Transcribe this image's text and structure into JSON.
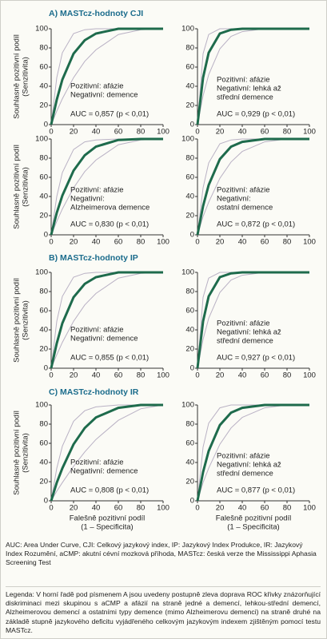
{
  "sections": [
    "A) MASTcz-hodnoty CJI",
    "B) MASTcz-hodnoty IP",
    "C) MASTcz-hodnoty IR"
  ],
  "chart_data": [
    {
      "type": "line",
      "ylabel": [
        "Souhlasně pozitivní podíl",
        "(Senzitivita)"
      ],
      "annotation": [
        "Pozitivní: afázie",
        "Negativní: demence",
        "AUC = 0,857 (p < 0,01)"
      ],
      "x": [
        0,
        5,
        10,
        20,
        30,
        40,
        60,
        80,
        100
      ],
      "xlim": [
        0,
        100
      ],
      "ylim": [
        0,
        100
      ],
      "xticks": [
        0,
        20,
        40,
        60,
        80,
        100
      ],
      "yticks": [
        0,
        20,
        40,
        60,
        80,
        100
      ],
      "series": [
        {
          "color": "#b9b1c4",
          "line_width": 1,
          "values": [
            0,
            14,
            27,
            49,
            66,
            78,
            94,
            99,
            100
          ]
        },
        {
          "color": "#b9b1c4",
          "line_width": 1,
          "values": [
            0,
            49,
            75,
            95,
            99,
            100,
            100,
            100,
            100
          ]
        },
        {
          "color": "#1e6b4c",
          "line_width": 3,
          "values": [
            0,
            26,
            47,
            74,
            88,
            95,
            100,
            100,
            100
          ]
        }
      ]
    },
    {
      "type": "line",
      "annotation": [
        "Pozitivní: afázie",
        "Negativní: lehká až",
        "střední demence",
        "AUC = 0,929 (p < 0,01)"
      ],
      "x": [
        0,
        5,
        10,
        20,
        30,
        40,
        60,
        80,
        100
      ],
      "xlim": [
        0,
        100
      ],
      "ylim": [
        0,
        100
      ],
      "xticks": [
        0,
        20,
        40,
        60,
        80,
        100
      ],
      "yticks": [
        0,
        20,
        40,
        60,
        80,
        100
      ],
      "series": [
        {
          "color": "#b9b1c4",
          "line_width": 1,
          "values": [
            0,
            30,
            52,
            79,
            92,
            97,
            100,
            100,
            100
          ]
        },
        {
          "color": "#b9b1c4",
          "line_width": 1,
          "values": [
            0,
            74,
            94,
            100,
            100,
            100,
            100,
            100,
            100
          ]
        },
        {
          "color": "#1e6b4c",
          "line_width": 3,
          "values": [
            0,
            49,
            75,
            95,
            99,
            100,
            100,
            100,
            100
          ]
        }
      ]
    },
    {
      "type": "line",
      "ylabel": [
        "Souhlasně pozitivní podíl",
        "(Senzitivita)"
      ],
      "annotation": [
        "Pozitivní: afázie",
        "Negativní:",
        "Alzheimerova demence",
        "AUC = 0,830 (p < 0,01)"
      ],
      "x": [
        0,
        5,
        10,
        20,
        30,
        40,
        60,
        80,
        100
      ],
      "xlim": [
        0,
        100
      ],
      "ylim": [
        0,
        100
      ],
      "xticks": [
        0,
        20,
        40,
        60,
        80,
        100
      ],
      "yticks": [
        0,
        20,
        40,
        60,
        80,
        100
      ],
      "series": [
        {
          "color": "#b9b1c4",
          "line_width": 1,
          "values": [
            0,
            14,
            27,
            49,
            66,
            78,
            94,
            99,
            100
          ]
        },
        {
          "color": "#b9b1c4",
          "line_width": 1,
          "values": [
            0,
            40,
            65,
            89,
            97,
            99,
            100,
            100,
            100
          ]
        },
        {
          "color": "#1e6b4c",
          "line_width": 3,
          "values": [
            0,
            23,
            41,
            67,
            83,
            92,
            99,
            100,
            100
          ]
        }
      ]
    },
    {
      "type": "line",
      "annotation": [
        "Pozitivní: afázie",
        "Negativní:",
        "ostatní demence",
        "AUC = 0,872 (p < 0,01)"
      ],
      "x": [
        0,
        5,
        10,
        20,
        30,
        40,
        60,
        80,
        100
      ],
      "xlim": [
        0,
        100
      ],
      "ylim": [
        0,
        100
      ],
      "xticks": [
        0,
        20,
        40,
        60,
        80,
        100
      ],
      "yticks": [
        0,
        20,
        40,
        60,
        80,
        100
      ],
      "series": [
        {
          "color": "#b9b1c4",
          "line_width": 1,
          "values": [
            0,
            19,
            34,
            59,
            76,
            87,
            97,
            100,
            100
          ]
        },
        {
          "color": "#b9b1c4",
          "line_width": 1,
          "values": [
            0,
            49,
            75,
            95,
            99,
            100,
            100,
            100,
            100
          ]
        },
        {
          "color": "#1e6b4c",
          "line_width": 3,
          "values": [
            0,
            30,
            52,
            79,
            92,
            97,
            100,
            100,
            100
          ]
        }
      ]
    },
    {
      "type": "line",
      "ylabel": [
        "Souhlasně pozitivní podíl",
        "(Senzitivita)"
      ],
      "annotation": [
        "Pozitivní: afázie",
        "Negativní: demence",
        "AUC = 0,855 (p < 0,01)"
      ],
      "x": [
        0,
        5,
        10,
        20,
        30,
        40,
        60,
        80,
        100
      ],
      "xlim": [
        0,
        100
      ],
      "ylim": [
        0,
        100
      ],
      "xticks": [
        0,
        20,
        40,
        60,
        80,
        100
      ],
      "yticks": [
        0,
        20,
        40,
        60,
        80,
        100
      ],
      "series": [
        {
          "color": "#b9b1c4",
          "line_width": 1,
          "values": [
            0,
            14,
            27,
            49,
            66,
            78,
            94,
            99,
            100
          ]
        },
        {
          "color": "#b9b1c4",
          "line_width": 1,
          "values": [
            0,
            49,
            75,
            95,
            99,
            100,
            100,
            100,
            100
          ]
        },
        {
          "color": "#1e6b4c",
          "line_width": 3,
          "values": [
            0,
            26,
            47,
            74,
            88,
            95,
            100,
            100,
            100
          ]
        }
      ]
    },
    {
      "type": "line",
      "annotation": [
        "Pozitivní: afázie",
        "Negativní: lehká až",
        "střední demence",
        "AUC = 0,927 (p < 0,01)"
      ],
      "x": [
        0,
        5,
        10,
        20,
        30,
        40,
        60,
        80,
        100
      ],
      "xlim": [
        0,
        100
      ],
      "ylim": [
        0,
        100
      ],
      "xticks": [
        0,
        20,
        40,
        60,
        80,
        100
      ],
      "yticks": [
        0,
        20,
        40,
        60,
        80,
        100
      ],
      "series": [
        {
          "color": "#b9b1c4",
          "line_width": 1,
          "values": [
            0,
            30,
            52,
            79,
            92,
            97,
            100,
            100,
            100
          ]
        },
        {
          "color": "#b9b1c4",
          "line_width": 1,
          "values": [
            0,
            74,
            94,
            100,
            100,
            100,
            100,
            100,
            100
          ]
        },
        {
          "color": "#1e6b4c",
          "line_width": 3,
          "values": [
            0,
            49,
            75,
            95,
            99,
            100,
            100,
            100,
            100
          ]
        }
      ]
    },
    {
      "type": "line",
      "ylabel": [
        "Souhlasně pozitivní podíl",
        "(Senzitivita)"
      ],
      "xlabel": [
        "Falešně pozitivní podíl",
        "(1 – Specificita)"
      ],
      "annotation": [
        "Pozitivní: afázie",
        "Negativní: demence",
        "AUC = 0,808 (p < 0,01)"
      ],
      "x": [
        0,
        5,
        10,
        20,
        30,
        40,
        60,
        80,
        100
      ],
      "xlim": [
        0,
        100
      ],
      "ylim": [
        0,
        100
      ],
      "xticks": [
        0,
        20,
        40,
        60,
        80,
        100
      ],
      "yticks": [
        0,
        20,
        40,
        60,
        80,
        100
      ],
      "series": [
        {
          "color": "#b9b1c4",
          "line_width": 1,
          "values": [
            0,
            10,
            19,
            36,
            51,
            64,
            84,
            96,
            100
          ]
        },
        {
          "color": "#b9b1c4",
          "line_width": 1,
          "values": [
            0,
            34,
            57,
            83,
            94,
            98,
            100,
            100,
            100
          ]
        },
        {
          "color": "#1e6b4c",
          "line_width": 3,
          "values": [
            0,
            19,
            34,
            59,
            76,
            87,
            97,
            100,
            100
          ]
        }
      ]
    },
    {
      "type": "line",
      "xlabel": [
        "Falešně pozitivní podíl",
        "(1 – Specificita)"
      ],
      "annotation": [
        "Pozitivní: afázie",
        "Negativní: lehká až",
        "střední demence",
        "AUC = 0,877 (p < 0,01)"
      ],
      "x": [
        0,
        5,
        10,
        20,
        30,
        40,
        60,
        80,
        100
      ],
      "xlim": [
        0,
        100
      ],
      "ylim": [
        0,
        100
      ],
      "xticks": [
        0,
        20,
        40,
        60,
        80,
        100
      ],
      "yticks": [
        0,
        20,
        40,
        60,
        80,
        100
      ],
      "series": [
        {
          "color": "#b9b1c4",
          "line_width": 1,
          "values": [
            0,
            19,
            34,
            59,
            76,
            87,
            97,
            100,
            100
          ]
        },
        {
          "color": "#b9b1c4",
          "line_width": 1,
          "values": [
            0,
            56,
            81,
            97,
            100,
            100,
            100,
            100,
            100
          ]
        },
        {
          "color": "#1e6b4c",
          "line_width": 3,
          "values": [
            0,
            30,
            52,
            79,
            92,
            97,
            100,
            100,
            100
          ]
        }
      ]
    }
  ],
  "abbreviations": "AUC: Area Under Curve, CJI: Celkový jazykový index, IP: Jazykový Index Produkce, IR: Jazykový Index Rozumění, aCMP: akutní cévní mozková příhoda, MASTcz: česká verze the Mississippi Aphasia Screening Test",
  "legend": "Legenda: V horní řadě pod písmenem A jsou uvedeny postupně zleva doprava ROC křivky znázorňující diskriminaci mezi skupinou s aCMP a afázií na straně jedné a demencí, lehkou-střední demencí, Alzheimerovou demencí a ostatními typy demence (mimo Alzheimerovu demenci) na straně druhé na základě stupně jazykového deficitu vyjádřeného celkovým jazykovým indexem zjištěným pomocí testu MASTcz."
}
